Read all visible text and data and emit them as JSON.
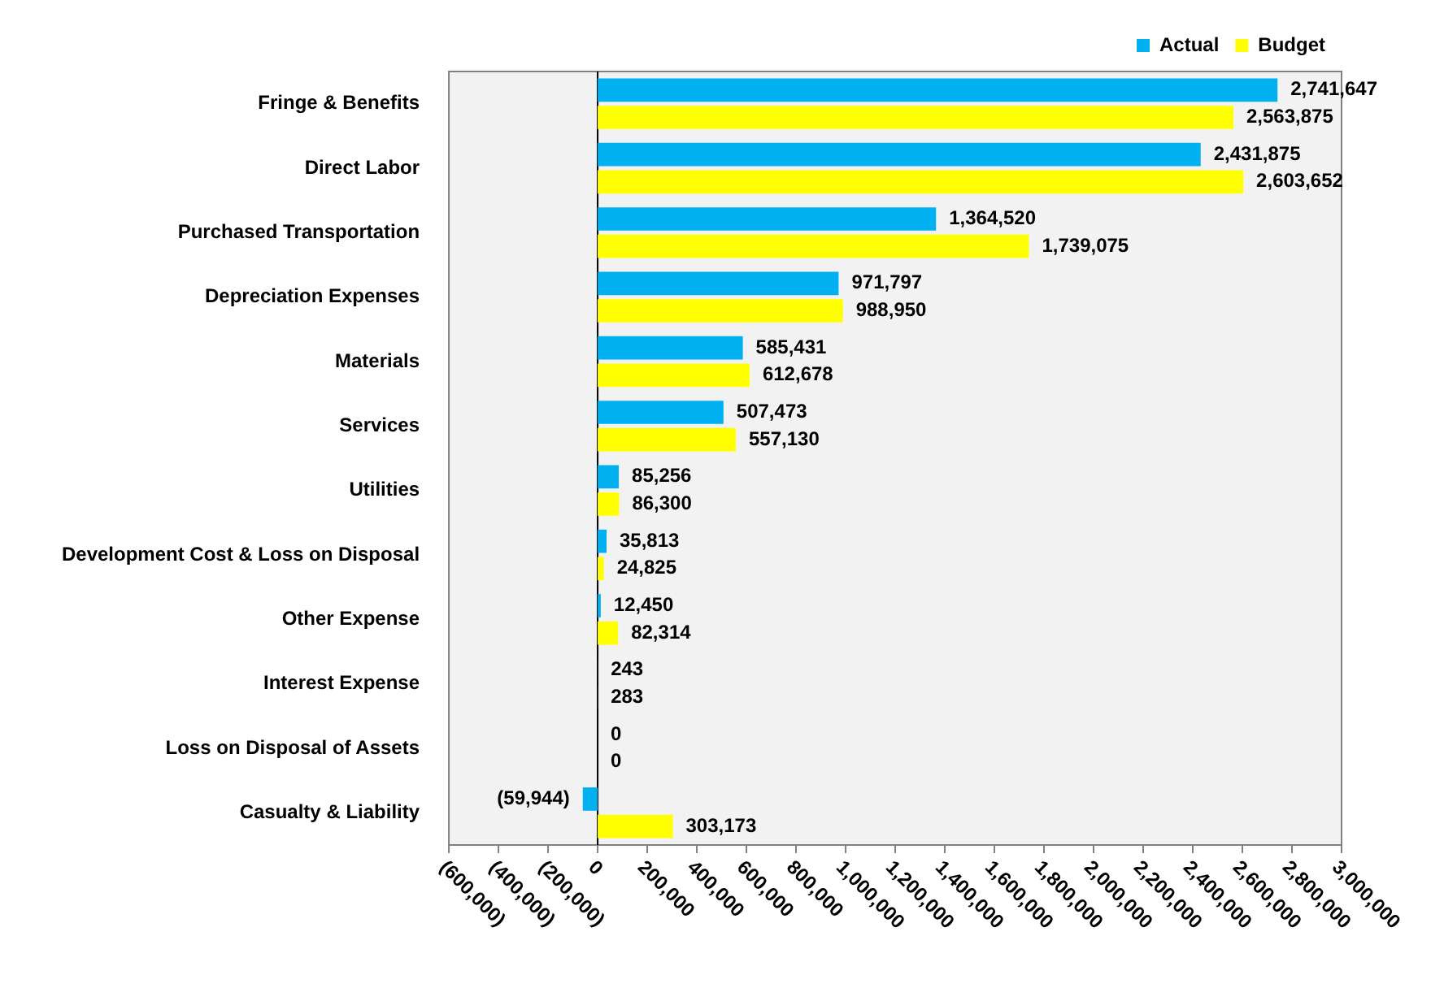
{
  "chart_data": {
    "type": "bar",
    "orientation": "horizontal",
    "categories": [
      "Fringe & Benefits",
      "Direct Labor",
      "Purchased Transportation",
      "Depreciation Expenses",
      "Materials",
      "Services",
      "Utilities",
      "Development Cost & Loss on Disposal",
      "Other Expense",
      "Interest Expense",
      "Loss on Disposal of Assets",
      "Casualty & Liability"
    ],
    "series": [
      {
        "name": "Actual",
        "color": "#00b0f0",
        "values": [
          2741647,
          2431875,
          1364520,
          971797,
          585431,
          507473,
          85256,
          35813,
          12450,
          243,
          0,
          -59944
        ],
        "value_labels": [
          "2,741,647",
          "2,431,875",
          "1,364,520",
          "971,797",
          "585,431",
          "507,473",
          "85,256",
          "35,813",
          "12,450",
          "243",
          "0",
          "(59,944)"
        ]
      },
      {
        "name": "Budget",
        "color": "#ffff00",
        "values": [
          2563875,
          2603652,
          1739075,
          988950,
          612678,
          557130,
          86300,
          24825,
          82314,
          283,
          0,
          303173
        ],
        "value_labels": [
          "2,563,875",
          "2,603,652",
          "1,739,075",
          "988,950",
          "612,678",
          "557,130",
          "86,300",
          "24,825",
          "82,314",
          "283",
          "0",
          "303,173"
        ]
      }
    ],
    "xlim": [
      -600000,
      3000000
    ],
    "xticks": [
      {
        "value": -600000,
        "label": "(600,000)"
      },
      {
        "value": -400000,
        "label": "(400,000)"
      },
      {
        "value": -200000,
        "label": "(200,000)"
      },
      0,
      {
        "value": 200000,
        "label": "200,000"
      },
      {
        "value": 400000,
        "label": "400,000"
      },
      {
        "value": 600000,
        "label": "600,000"
      },
      {
        "value": 800000,
        "label": "800,000"
      },
      {
        "value": 1000000,
        "label": "1,000,000"
      },
      {
        "value": 1200000,
        "label": "1,200,000"
      },
      {
        "value": 1400000,
        "label": "1,400,000"
      },
      {
        "value": 1600000,
        "label": "1,600,000"
      },
      {
        "value": 1800000,
        "label": "1,800,000"
      },
      {
        "value": 2000000,
        "label": "2,000,000"
      },
      {
        "value": 2200000,
        "label": "2,200,000"
      },
      {
        "value": 2400000,
        "label": "2,400,000"
      },
      {
        "value": 2600000,
        "label": "2,600,000"
      },
      {
        "value": 2800000,
        "label": "2,800,000"
      },
      {
        "value": 3000000,
        "label": "3,000,000"
      }
    ],
    "ref_lines": [
      {
        "axis": "x",
        "value": 0,
        "color": "#000000"
      }
    ],
    "grid": false,
    "legend": "top right"
  }
}
